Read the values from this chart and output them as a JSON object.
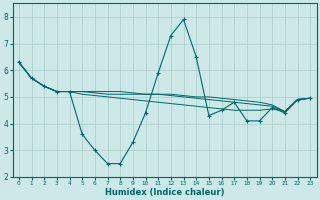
{
  "title": "",
  "xlabel": "Humidex (Indice chaleur)",
  "ylabel": "",
  "background_color": "#cce8e8",
  "line_color": "#006868",
  "grid_color": "#aacccc",
  "xlim": [
    -0.5,
    23.5
  ],
  "ylim": [
    2,
    8.5
  ],
  "yticks": [
    2,
    3,
    4,
    5,
    6,
    7,
    8
  ],
  "xticks": [
    0,
    1,
    2,
    3,
    4,
    5,
    6,
    7,
    8,
    9,
    10,
    11,
    12,
    13,
    14,
    15,
    16,
    17,
    18,
    19,
    20,
    21,
    22,
    23
  ],
  "series_main": [
    6.3,
    5.7,
    5.4,
    5.2,
    5.2,
    3.6,
    3.0,
    2.5,
    2.5,
    3.3,
    4.4,
    5.9,
    7.3,
    7.9,
    6.5,
    4.3,
    4.5,
    4.8,
    4.1,
    4.1,
    4.6,
    4.4,
    4.9,
    4.95
  ],
  "series_lines": [
    [
      6.3,
      5.7,
      5.4,
      5.2,
      5.2,
      5.1,
      5.05,
      5.0,
      4.95,
      4.9,
      4.85,
      4.8,
      4.75,
      4.7,
      4.65,
      4.6,
      4.55,
      4.5,
      4.5,
      4.5,
      4.55,
      4.45,
      4.9,
      4.95
    ],
    [
      6.3,
      5.7,
      5.4,
      5.2,
      5.2,
      5.2,
      5.15,
      5.1,
      5.1,
      5.1,
      5.1,
      5.1,
      5.1,
      5.05,
      5.0,
      5.0,
      4.95,
      4.9,
      4.85,
      4.8,
      4.7,
      4.45,
      4.9,
      4.95
    ],
    [
      6.3,
      5.7,
      5.4,
      5.2,
      5.2,
      5.2,
      5.2,
      5.2,
      5.2,
      5.15,
      5.1,
      5.1,
      5.05,
      5.0,
      4.95,
      4.9,
      4.85,
      4.8,
      4.75,
      4.7,
      4.65,
      4.45,
      4.9,
      4.95
    ]
  ]
}
